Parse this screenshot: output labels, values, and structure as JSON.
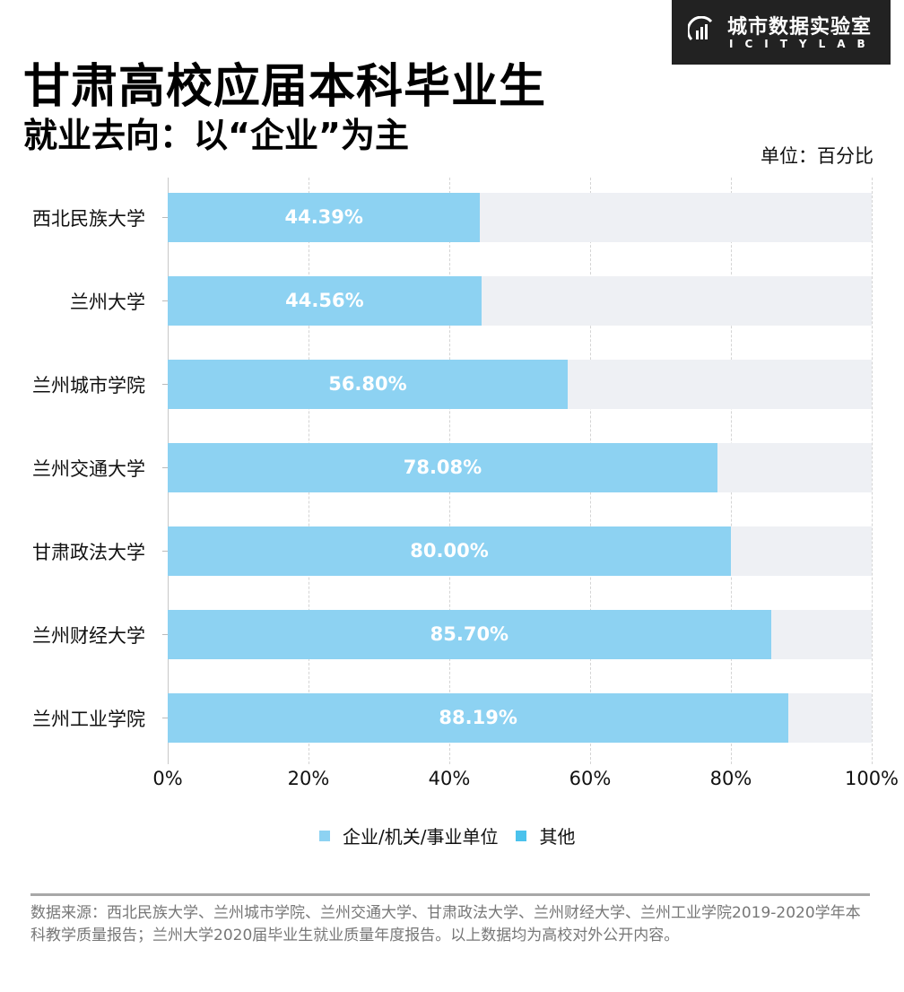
{
  "logo": {
    "cn": "城市数据实验室",
    "en": "ICITYLAB",
    "icon": "bar-chart-logo-icon"
  },
  "header": {
    "title": "甘肃高校应届本科毕业生",
    "subtitle": "就业去向：以“企业”为主",
    "unit": "单位：百分比"
  },
  "chart_data": {
    "type": "bar",
    "orientation": "horizontal",
    "stacked": true,
    "title": "甘肃高校应届本科毕业生就业去向：以“企业”为主",
    "unit": "百分比",
    "categories": [
      "西北民族大学",
      "兰州大学",
      "兰州城市学院",
      "兰州交通大学",
      "甘肃政法大学",
      "兰州财经大学",
      "兰州工业学院"
    ],
    "series": [
      {
        "name": "企业/机关/事业单位",
        "color": "#8dd2f2",
        "values": [
          44.39,
          44.56,
          56.8,
          78.08,
          80.0,
          85.7,
          88.19
        ]
      },
      {
        "name": "其他",
        "color": "#eef0f4",
        "values": [
          55.61,
          55.44,
          43.2,
          21.92,
          20.0,
          14.3,
          11.81
        ]
      }
    ],
    "value_labels": [
      "44.39%",
      "44.56%",
      "56.80%",
      "78.08%",
      "80.00%",
      "85.70%",
      "88.19%"
    ],
    "xlim": [
      0,
      100
    ],
    "xticks": [
      "0%",
      "20%",
      "40%",
      "60%",
      "80%",
      "100%"
    ],
    "grid": "vertical dashed",
    "legend": {
      "position": "bottom",
      "entries": [
        "企业/机关/事业单位",
        "其他"
      ],
      "colors": [
        "#8dd2f2",
        "#4bc2ec"
      ]
    }
  },
  "footer": {
    "source": "数据来源：西北民族大学、兰州城市学院、兰州交通大学、甘肃政法大学、兰州财经大学、兰州工业学院2019-2020学年本科教学质量报告；兰州大学2020届毕业生就业质量年度报告。以上数据均为高校对外公开内容。"
  }
}
